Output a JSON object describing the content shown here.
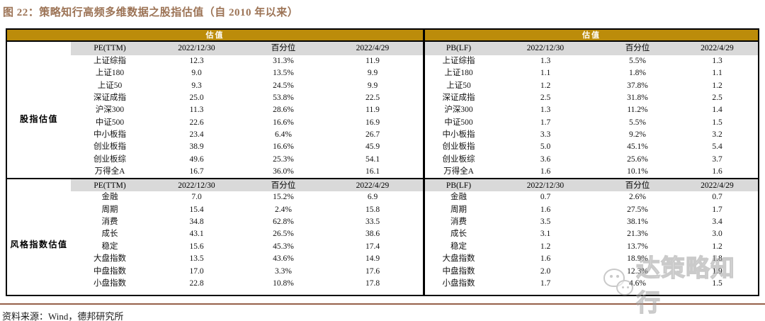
{
  "title": "图 22：策略知行高频多维数据之股指估值（自 2010 年以来）",
  "colors": {
    "gold_band": "#BC8C0A",
    "gray_band": "#D9D9D9",
    "title_text": "#9C7355",
    "source_rule": "#96604A"
  },
  "table": {
    "band_label": "估值",
    "col_headers": [
      "2022/12/30",
      "百分位",
      "2022/4/29"
    ],
    "groups": [
      {
        "label": "股指估值"
      },
      {
        "label": "风格指数估值"
      }
    ],
    "left": {
      "metric": "PE(TTM)",
      "section1_rows": [
        [
          "上证综指",
          "12.3",
          "31.3%",
          "11.9"
        ],
        [
          "上证180",
          "9.0",
          "13.5%",
          "9.9"
        ],
        [
          "上证50",
          "9.3",
          "24.5%",
          "9.9"
        ],
        [
          "深证成指",
          "25.0",
          "53.8%",
          "22.5"
        ],
        [
          "沪深300",
          "11.3",
          "28.6%",
          "11.9"
        ],
        [
          "中证500",
          "22.6",
          "16.6%",
          "16.9"
        ],
        [
          "中小板指",
          "23.4",
          "6.4%",
          "26.7"
        ],
        [
          "创业板指",
          "38.9",
          "16.6%",
          "45.9"
        ],
        [
          "创业板综",
          "49.6",
          "25.3%",
          "54.1"
        ],
        [
          "万得全A",
          "16.7",
          "36.0%",
          "16.1"
        ]
      ],
      "section2_rows": [
        [
          "金融",
          "7.0",
          "15.2%",
          "6.9"
        ],
        [
          "周期",
          "15.4",
          "2.4%",
          "15.8"
        ],
        [
          "消费",
          "34.8",
          "62.8%",
          "33.5"
        ],
        [
          "成长",
          "43.1",
          "26.5%",
          "38.6"
        ],
        [
          "稳定",
          "15.6",
          "45.3%",
          "17.4"
        ],
        [
          "大盘指数",
          "13.5",
          "43.6%",
          "14.9"
        ],
        [
          "中盘指数",
          "17.0",
          "3.3%",
          "17.6"
        ],
        [
          "小盘指数",
          "22.8",
          "10.8%",
          "17.8"
        ]
      ]
    },
    "right": {
      "metric": "PB(LF)",
      "section1_rows": [
        [
          "上证综指",
          "1.3",
          "5.5%",
          "1.3"
        ],
        [
          "上证180",
          "1.1",
          "1.8%",
          "1.1"
        ],
        [
          "上证50",
          "1.2",
          "37.8%",
          "1.2"
        ],
        [
          "深证成指",
          "2.5",
          "31.8%",
          "2.5"
        ],
        [
          "沪深300",
          "1.3",
          "11.2%",
          "1.4"
        ],
        [
          "中证500",
          "1.7",
          "5.5%",
          "1.5"
        ],
        [
          "中小板指",
          "3.3",
          "9.2%",
          "3.2"
        ],
        [
          "创业板指",
          "5.0",
          "45.1%",
          "5.4"
        ],
        [
          "创业板综",
          "3.6",
          "25.6%",
          "3.7"
        ],
        [
          "万得全A",
          "1.6",
          "10.1%",
          "1.6"
        ]
      ],
      "section2_rows": [
        [
          "金融",
          "0.7",
          "2.6%",
          "0.7"
        ],
        [
          "周期",
          "1.6",
          "27.5%",
          "1.7"
        ],
        [
          "消费",
          "3.5",
          "38.1%",
          "3.4"
        ],
        [
          "成长",
          "3.1",
          "21.3%",
          "3.0"
        ],
        [
          "稳定",
          "1.2",
          "13.7%",
          "1.2"
        ],
        [
          "大盘指数",
          "1.6",
          "18.9%",
          "1.8"
        ],
        [
          "中盘指数",
          "2.0",
          "12.3%",
          "1.9"
        ],
        [
          "小盘指数",
          "1.7",
          "4.6%",
          "1.5"
        ]
      ]
    }
  },
  "watermark": {
    "text": "达策略知行",
    "icon": "wechat-icon"
  },
  "source": "资料来源：Wind，德邦研究所"
}
